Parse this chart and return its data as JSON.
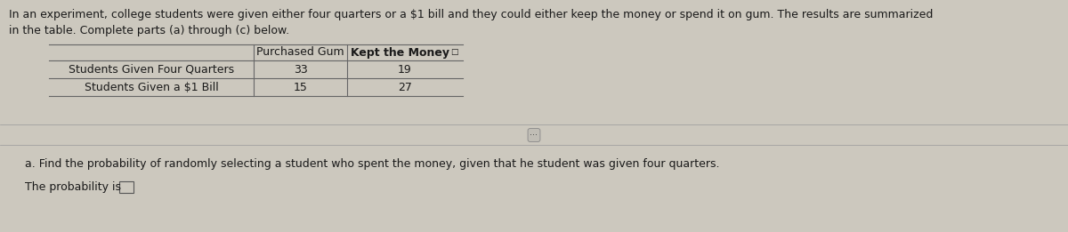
{
  "intro_text_line1": "In an experiment, college students were given either four quarters or a $1 bill and they could either keep the money or spend it on gum. The results are summarized",
  "intro_text_line2": "in the table. Complete parts (a) through (c) below.",
  "col_headers": [
    "Purchased Gum",
    "Kept the Money"
  ],
  "row_headers": [
    "Students Given Four Quarters",
    "Students Given a $1 Bill"
  ],
  "data": [
    [
      33,
      19
    ],
    [
      15,
      27
    ]
  ],
  "part_a_text": "a. Find the probability of randomly selecting a student who spent the money, given that he student was given four quarters.",
  "answer_label": "The probability is",
  "bg_color": "#ccc8be",
  "text_color": "#1a1a1a",
  "line_color": "#666666",
  "font_size_intro": 9.0,
  "font_size_table": 9.0,
  "font_size_part": 9.0
}
